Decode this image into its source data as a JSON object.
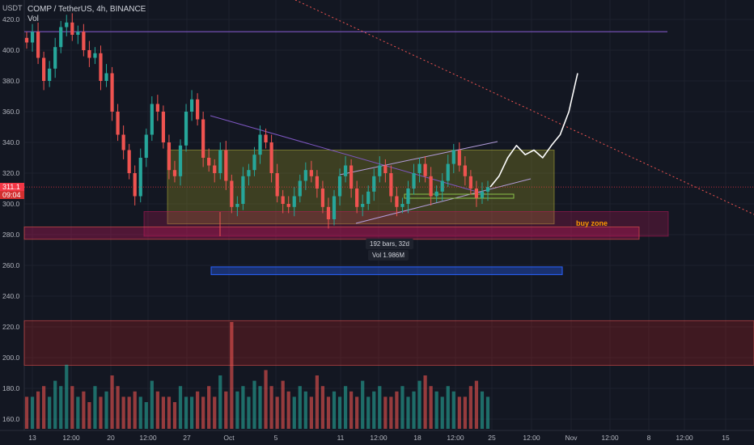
{
  "header": {
    "pair_line": "COMP / TetherUS, 4h, BINANCE",
    "indicator": "Vol",
    "unit": "USDT"
  },
  "price_label": {
    "price": "311.1",
    "countdown": "09:04"
  },
  "annotations": {
    "buy_zone": "buy zone",
    "range_info_bars": "192 bars, 32d",
    "range_info_vol": "Vol 1.986M"
  },
  "colors": {
    "background": "#131722",
    "up": "#26a69a",
    "down": "#ef5350",
    "resistance": "#7e57c2",
    "consolidation": "#9e9d24",
    "buy_zone": "#c2185b",
    "target_zone": "#2962ff",
    "projection": "#ffffff"
  },
  "chart_data": {
    "type": "candlestick",
    "symbol": "COMP / TetherUS",
    "interval": "4h",
    "exchange": "BINANCE",
    "y_axis": {
      "ticks": [
        "420.0",
        "400.0",
        "380.0",
        "360.0",
        "340.0",
        "320.0",
        "300.0",
        "280.0",
        "260.0",
        "240.0",
        "220.0",
        "200.0",
        "180.0",
        "160.0"
      ],
      "range": [
        155,
        425
      ]
    },
    "x_axis": {
      "ticks": [
        "13",
        "12:00",
        "20",
        "12:00",
        "27",
        "Oct",
        "5",
        "11",
        "12:00",
        "18",
        "12:00",
        "25",
        "12:00",
        "Nov",
        "12:00",
        "8",
        "12:00",
        "15"
      ]
    },
    "horizontal_lines": [
      412
    ],
    "zones": [
      {
        "name": "consolidation",
        "top": 335,
        "bottom": 287
      },
      {
        "name": "buy zone",
        "top": 295,
        "bottom": 279
      },
      {
        "name": "target",
        "top": 259,
        "bottom": 254
      },
      {
        "name": "volume-spike-band",
        "top": 224,
        "bottom": 195
      }
    ],
    "close_series": [
      405,
      412,
      395,
      380,
      388,
      402,
      415,
      418,
      410,
      412,
      400,
      395,
      398,
      380,
      385,
      360,
      345,
      335,
      320,
      305,
      330,
      345,
      365,
      360,
      340,
      322,
      318,
      338,
      360,
      368,
      355,
      330,
      325,
      320,
      335,
      315,
      298,
      300,
      318,
      322,
      332,
      345,
      340,
      320,
      305,
      300,
      298,
      305,
      315,
      322,
      318,
      310,
      298,
      290,
      305,
      318,
      325,
      310,
      298,
      300,
      308,
      318,
      325,
      320,
      305,
      298,
      300,
      310,
      320,
      326,
      318,
      305,
      308,
      315,
      326,
      335,
      325,
      318,
      310,
      304,
      308,
      311
    ],
    "projection_path": [
      311,
      318,
      330,
      338,
      332,
      335,
      330,
      338,
      345,
      360,
      385
    ],
    "volume": [
      0.3,
      0.3,
      0.35,
      0.4,
      0.3,
      0.45,
      0.4,
      0.6,
      0.4,
      0.3,
      0.35,
      0.25,
      0.4,
      0.3,
      0.35,
      0.5,
      0.4,
      0.3,
      0.3,
      0.35,
      0.3,
      0.25,
      0.45,
      0.35,
      0.3,
      0.3,
      0.25,
      0.4,
      0.3,
      0.3,
      0.35,
      0.3,
      0.4,
      0.3,
      0.5,
      0.35,
      1.0,
      0.35,
      0.4,
      0.3,
      0.45,
      0.4,
      0.55,
      0.4,
      0.3,
      0.45,
      0.35,
      0.3,
      0.4,
      0.35,
      0.3,
      0.5,
      0.4,
      0.3,
      0.35,
      0.3,
      0.4,
      0.35,
      0.3,
      0.45,
      0.3,
      0.35,
      0.4,
      0.3,
      0.3,
      0.35,
      0.4,
      0.3,
      0.35,
      0.45,
      0.5,
      0.4,
      0.35,
      0.3,
      0.4,
      0.35,
      0.3,
      0.3,
      0.4,
      0.45,
      0.35,
      0.3
    ]
  }
}
